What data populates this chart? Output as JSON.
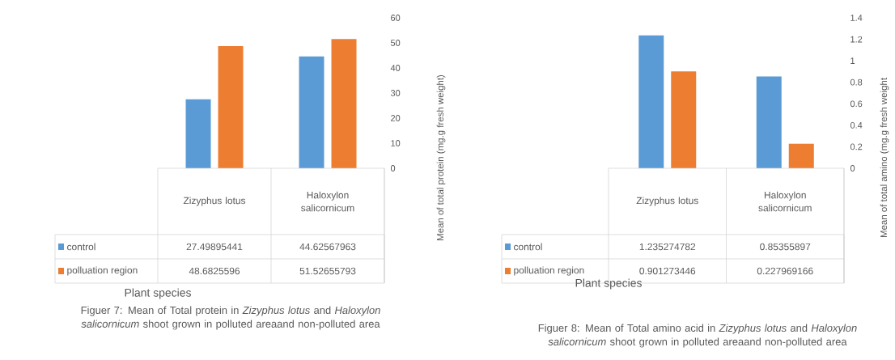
{
  "chart_data": [
    {
      "type": "bar",
      "title": "Figuer 7: Mean of Total protein in *Zizyphus lotus* and *Haloxylon salicornicum* shoot  grown in polluted areaand non-polluted area",
      "xlabel": "Plant species",
      "ylabel": "Mean of total protein (mg.g fresh weight)",
      "categories": [
        "Zizyphus lotus",
        "Haloxylon salicornicum"
      ],
      "series": [
        {
          "name": "control",
          "color": "#5b9bd5",
          "values": [
            27.49895441,
            44.62567963
          ]
        },
        {
          "name": "polluation region",
          "color": "#ed7d31",
          "values": [
            48.6825596,
            51.52655793
          ]
        }
      ],
      "ylim": [
        0,
        60
      ],
      "yticks": [
        0,
        10,
        20,
        30,
        40,
        50,
        60
      ],
      "data_labels": true,
      "legend": "bottom",
      "grid": false
    },
    {
      "type": "bar",
      "title": "Figuer 8: Mean of Total amino acid in *Zizyphus lotus* and *Haloxylon salicornicum* shoot  grown in polluted areaand non-polluted area",
      "xlabel": "Plant species",
      "ylabel": "Mean of total amino (mg.g fresh weight",
      "categories": [
        "Zizyphus lotus",
        "Haloxylon salicornicum"
      ],
      "series": [
        {
          "name": "control",
          "color": "#5b9bd5",
          "values": [
            1.235274782,
            0.85355897
          ]
        },
        {
          "name": "polluation region",
          "color": "#ed7d31",
          "values": [
            0.901273446,
            0.227969166
          ]
        }
      ],
      "ylim": [
        0,
        1.4
      ],
      "yticks": [
        0,
        0.2,
        0.4,
        0.6,
        0.8,
        1,
        1.2,
        1.4
      ],
      "data_labels": true,
      "legend": "bottom",
      "grid": false
    }
  ]
}
